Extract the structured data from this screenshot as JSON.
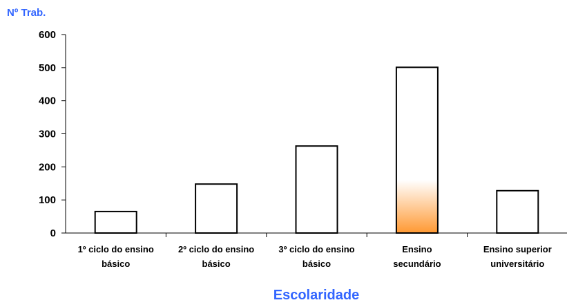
{
  "chart_data": {
    "type": "bar",
    "ylabel": "Nº Trab.",
    "xlabel": "Escolaridade",
    "categories": [
      [
        "1º ciclo do ensino",
        "básico"
      ],
      [
        "2º ciclo do ensino",
        "básico"
      ],
      [
        "3º ciclo do ensino",
        "básico"
      ],
      [
        "Ensino",
        "secundário"
      ],
      [
        "Ensino superior",
        "universitário"
      ]
    ],
    "values": [
      65,
      148,
      263,
      501,
      128
    ],
    "ylim": [
      0,
      600
    ],
    "yticks": [
      0,
      100,
      200,
      300,
      400,
      500,
      600
    ],
    "grid": false,
    "highlight_index": 3,
    "colors": {
      "axis_title": "#3366ff",
      "bar_fill": "#ffffff",
      "bar_stroke": "#000000",
      "highlight_gradient": "#ff9933"
    }
  }
}
